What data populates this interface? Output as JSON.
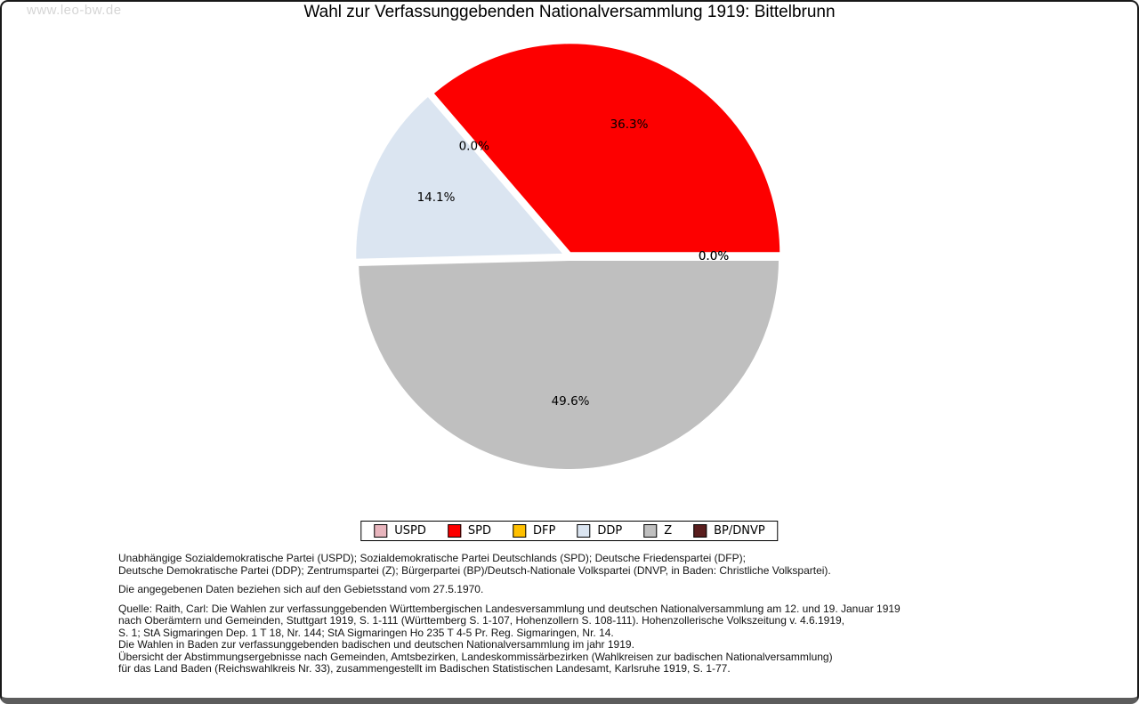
{
  "watermark": "www.leo-bw.de",
  "title": "Wahl zur Verfassunggebenden Nationalversammlung 1919: Bittelbrunn",
  "chart_data": {
    "type": "pie",
    "title": "Wahl zur Verfassunggebenden Nationalversammlung 1919: Bittelbrunn",
    "unit": "percent",
    "start_angle_deg": 0,
    "direction": "counterclockwise",
    "legend_position": "bottom",
    "slices": [
      {
        "label": "USPD",
        "value": 0.0,
        "pct_label": "0.0%",
        "color": "#e8b5bd"
      },
      {
        "label": "SPD",
        "value": 36.3,
        "pct_label": "36.3%",
        "color": "#fd0000"
      },
      {
        "label": "DFP",
        "value": 0.0,
        "pct_label": "0.0%",
        "color": "#ffc000"
      },
      {
        "label": "DDP",
        "value": 14.1,
        "pct_label": "14.1%",
        "color": "#dbe5f1"
      },
      {
        "label": "Z",
        "value": 49.6,
        "pct_label": "49.6%",
        "color": "#bfbfbf"
      },
      {
        "label": "BP/DNVP",
        "value": 0.0,
        "pct_label": "0.0%",
        "color": "#5a1e1e"
      }
    ]
  },
  "footnotes": {
    "party_abbreviations": [
      "Unabhängige Sozialdemokratische Partei (USPD); Sozialdemokratische Partei Deutschlands (SPD); Deutsche Friedenspartei (DFP);",
      "Deutsche Demokratische Partei (DDP); Zentrumspartei (Z); Bürgerpartei (BP)/Deutsch-Nationale Volkspartei (DNVP, in Baden: Christliche Volkspartei)."
    ],
    "data_note": "Die angegebenen Daten beziehen sich auf den Gebietsstand vom 27.5.1970.",
    "source_lines": [
      "Quelle: Raith, Carl: Die Wahlen zur verfassunggebenden Württembergischen Landesversammlung und deutschen Nationalversammlung am 12. und 19. Januar 1919",
      "nach Oberämtern und Gemeinden, Stuttgart 1919, S. 1-111 (Württemberg S. 1-107, Hohenzollern S. 108-111). Hohenzollerische Volkszeitung v. 4.6.1919,",
      "S. 1; StA Sigmaringen Dep. 1 T 18, Nr. 144; StA Sigmaringen Ho 235 T 4-5 Pr. Reg. Sigmaringen, Nr. 14.",
      "Die Wahlen in Baden zur verfassunggebenden badischen und deutschen Nationalversammlung im jahr 1919.",
      "Übersicht der Abstimmungsergebnisse nach Gemeinden, Amtsbezirken, Landeskommissärbezirken (Wahlkreisen zur badischen Nationalversammlung)",
      "für das Land Baden (Reichswahlkreis Nr. 33), zusammengestellt im Badischen Statistischen Landesamt, Karlsruhe 1919, S. 1-77."
    ]
  }
}
